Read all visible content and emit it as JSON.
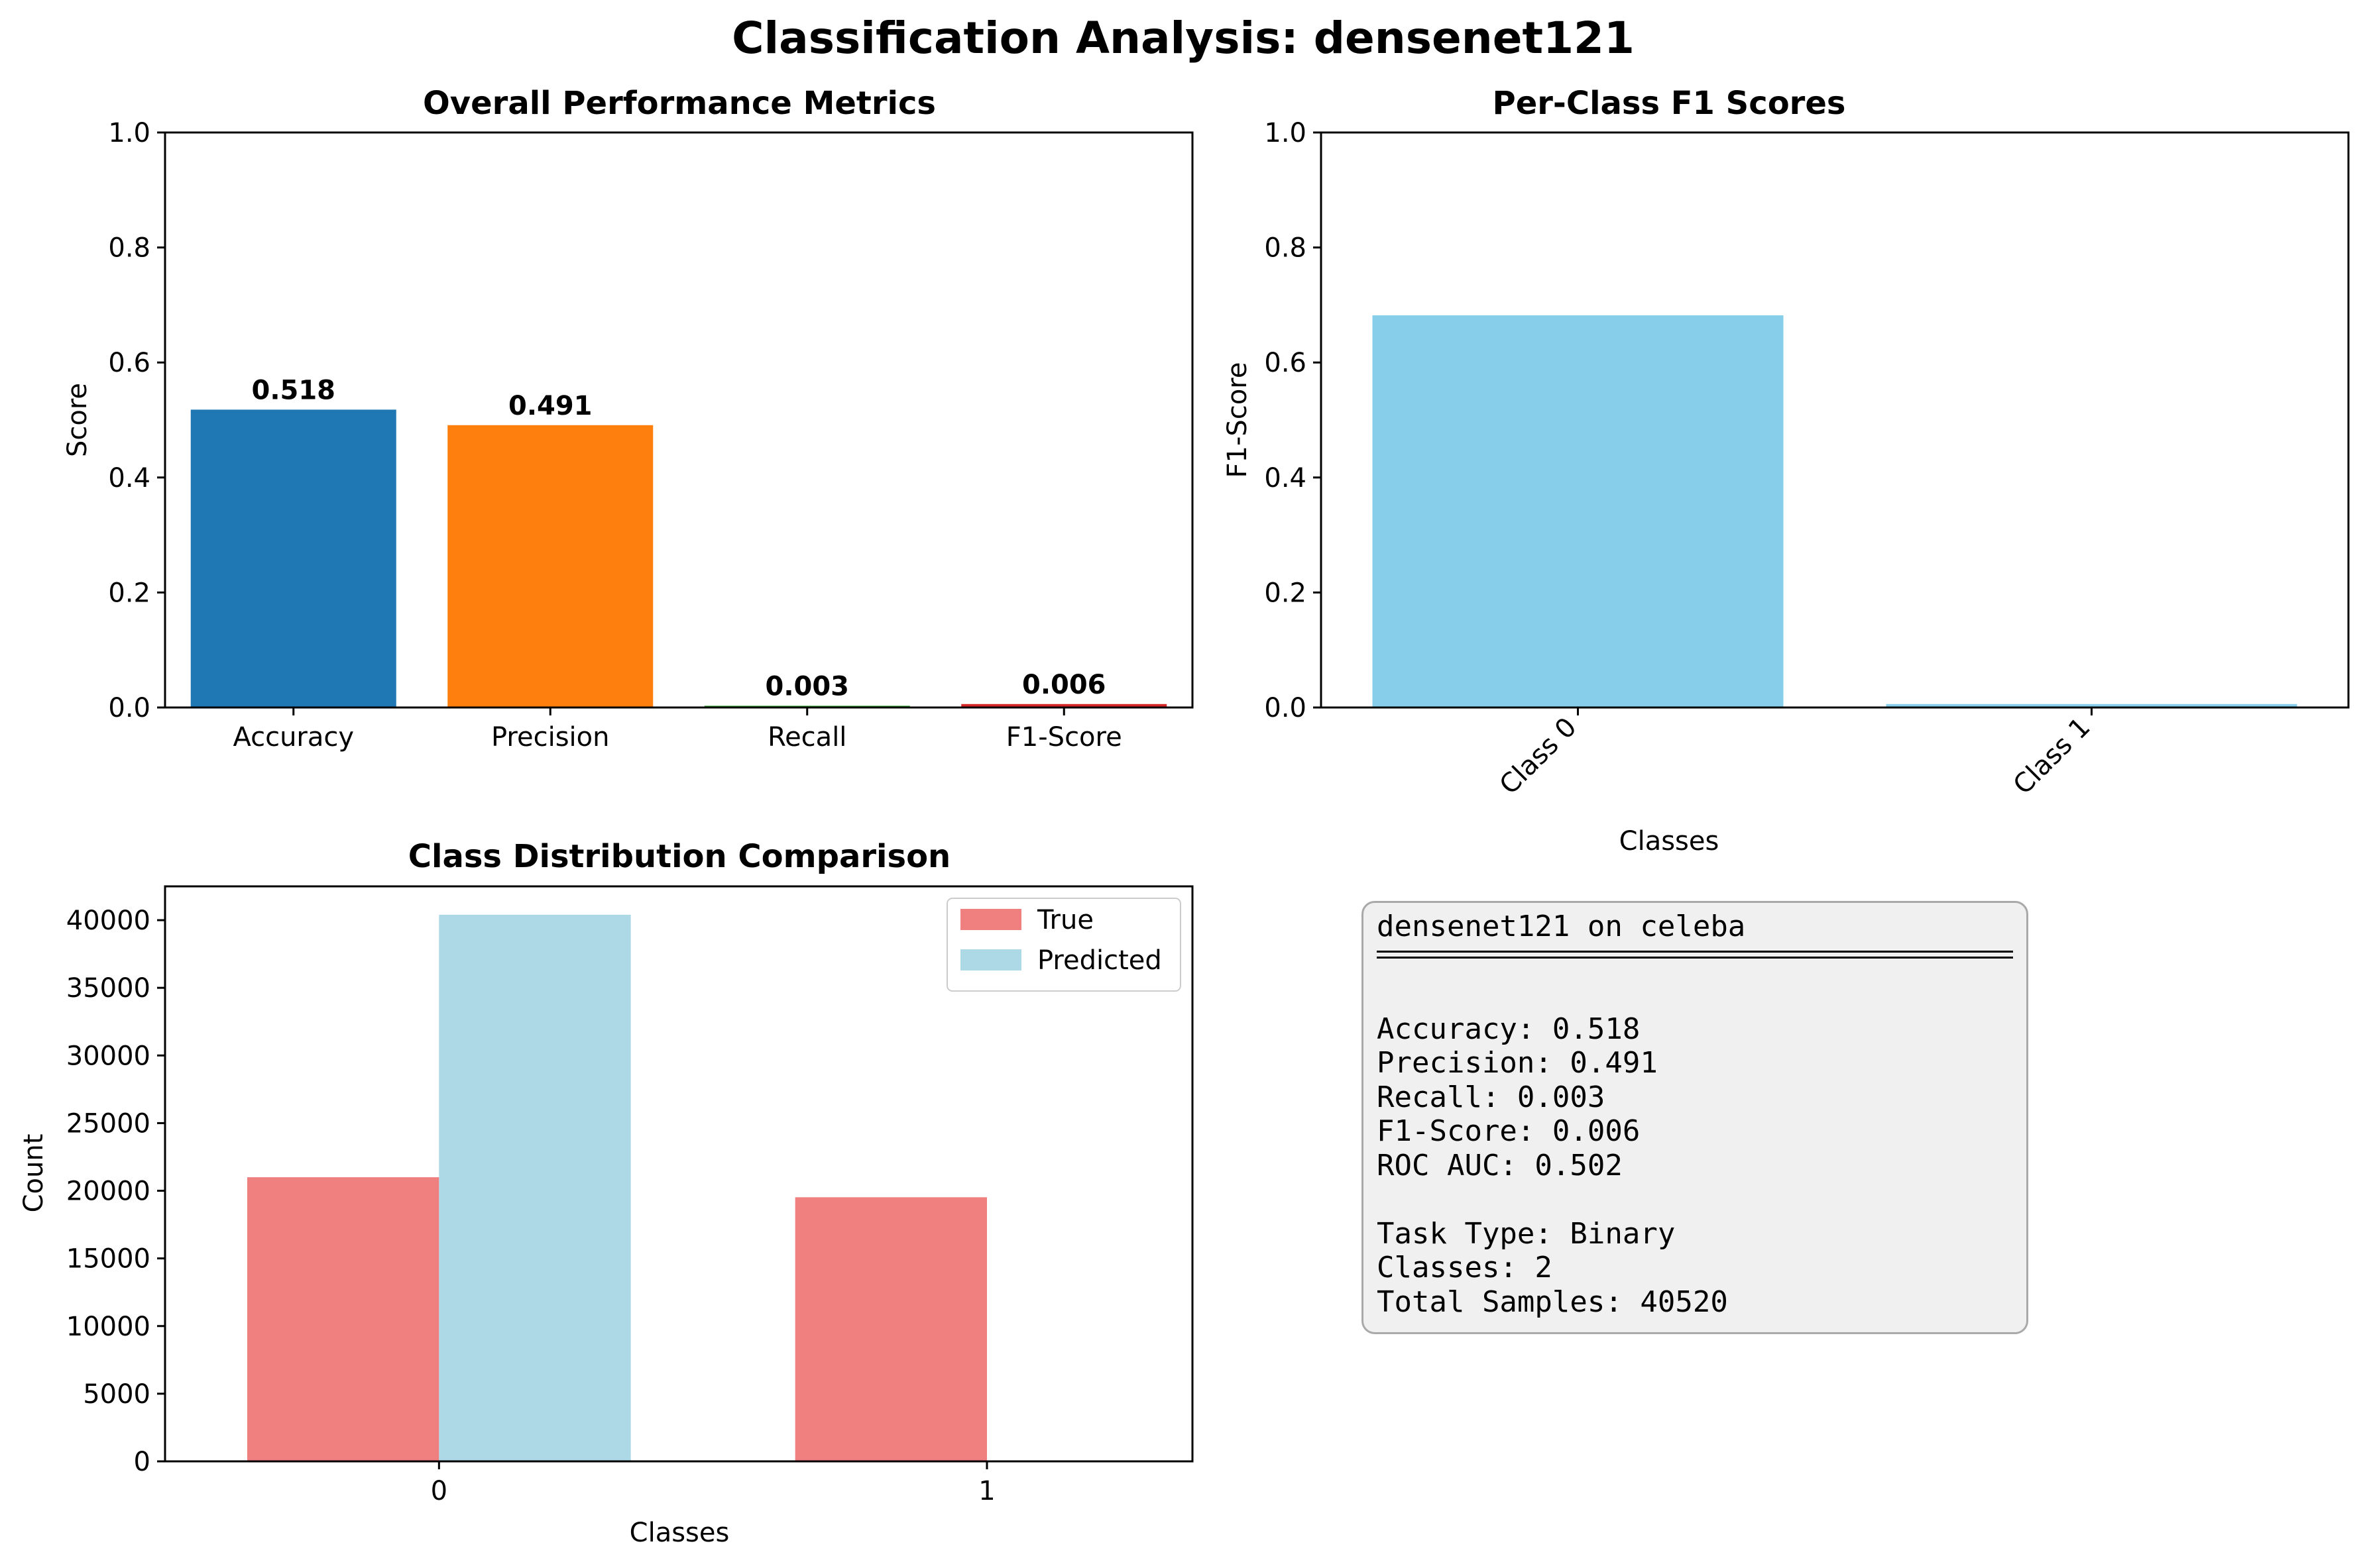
{
  "figure": {
    "title": "Classification Analysis: densenet121"
  },
  "chart_data": [
    {
      "type": "bar",
      "title": "Overall Performance Metrics",
      "xlabel": "",
      "ylabel": "Score",
      "ylim": [
        0,
        1.0
      ],
      "yticks": [
        "0.0",
        "0.2",
        "0.4",
        "0.6",
        "0.8",
        "1.0"
      ],
      "categories": [
        "Accuracy",
        "Precision",
        "Recall",
        "F1-Score"
      ],
      "values": [
        0.518,
        0.491,
        0.003,
        0.006
      ],
      "value_labels": [
        "0.518",
        "0.491",
        "0.003",
        "0.006"
      ],
      "colors": [
        "#1f77b4",
        "#ff7f0e",
        "#2ca02c",
        "#d62728"
      ],
      "grid": false
    },
    {
      "type": "bar",
      "title": "Per-Class F1 Scores",
      "xlabel": "Classes",
      "ylabel": "F1-Score",
      "ylim": [
        0,
        1.0
      ],
      "yticks": [
        "0.0",
        "0.2",
        "0.4",
        "0.6",
        "0.8",
        "1.0"
      ],
      "categories": [
        "Class 0",
        "Class 1"
      ],
      "values": [
        0.682,
        0.006
      ],
      "colors": [
        "#87ceeb"
      ],
      "grid": false
    },
    {
      "type": "bar",
      "title": "Class Distribution Comparison",
      "xlabel": "Classes",
      "ylabel": "Count",
      "ylim": [
        0,
        42500
      ],
      "yticks": [
        "0",
        "5000",
        "10000",
        "15000",
        "20000",
        "25000",
        "30000",
        "35000",
        "40000"
      ],
      "categories": [
        "0",
        "1"
      ],
      "series": [
        {
          "name": "True",
          "values": [
            21000,
            19520
          ],
          "color": "#f08080"
        },
        {
          "name": "Predicted",
          "values": [
            40400,
            0
          ],
          "color": "#add8e6"
        }
      ],
      "legend": "top-right",
      "grid": false
    }
  ],
  "summary": {
    "header": "densenet121 on celeba",
    "metrics": [
      "Accuracy: 0.518",
      "Precision: 0.491",
      "Recall: 0.003",
      "F1-Score: 0.006",
      "ROC AUC: 0.502"
    ],
    "info": [
      "Task Type: Binary",
      "Classes: 2",
      "Total Samples: 40520"
    ]
  }
}
